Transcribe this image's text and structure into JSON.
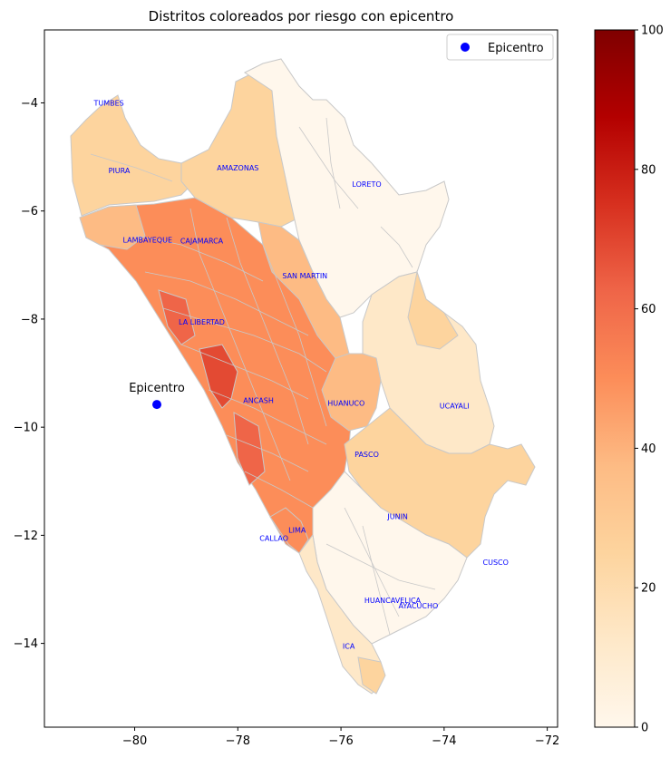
{
  "chart_data": {
    "type": "choropleth",
    "title": "Distritos coloreados por riesgo con epicentro",
    "xlim": [
      -81.75,
      -71.8
    ],
    "ylim": [
      -15.55,
      -2.65
    ],
    "xticks": [
      -80,
      -78,
      -76,
      -74,
      -72
    ],
    "yticks": [
      -4,
      -6,
      -8,
      -10,
      -12,
      -14
    ],
    "colormap": "OrRd",
    "colorbar": {
      "range": [
        0,
        100
      ],
      "ticks": [
        0,
        20,
        40,
        60,
        80,
        100
      ]
    },
    "colors": [
      "#fff7ec",
      "#fee8c8",
      "#fdd49e",
      "#fdbb84",
      "#fc8d59",
      "#ef6548",
      "#d7301f",
      "#b30000",
      "#7f0000"
    ],
    "border_color": "#c8c8c8",
    "epicenter": {
      "lon": -79.57,
      "lat": -9.58,
      "label": "Epicentro",
      "color": "#0000ff"
    },
    "legend": {
      "position": "upper right",
      "entries": [
        "Epicentro"
      ]
    },
    "departments": [
      {
        "name": "TUMBES",
        "lon": -80.5,
        "lat": -4.05,
        "risk": 15
      },
      {
        "name": "PIURA",
        "lon": -80.3,
        "lat": -5.3,
        "risk": 25
      },
      {
        "name": "AMAZONAS",
        "lon": -78.0,
        "lat": -5.25,
        "risk": 22
      },
      {
        "name": "LORETO",
        "lon": -75.5,
        "lat": -5.55,
        "risk": 6
      },
      {
        "name": "LAMBAYEQUE",
        "lon": -79.75,
        "lat": -6.58,
        "risk": 50
      },
      {
        "name": "CAJAMARCA",
        "lon": -78.7,
        "lat": -6.6,
        "risk": 52
      },
      {
        "name": "SAN MARTIN",
        "lon": -76.7,
        "lat": -7.25,
        "risk": 45
      },
      {
        "name": "LA LIBERTAD",
        "lon": -78.7,
        "lat": -8.1,
        "risk": 62
      },
      {
        "name": "ANCASH",
        "lon": -77.6,
        "lat": -9.55,
        "risk": 58
      },
      {
        "name": "HUANUCO",
        "lon": -75.9,
        "lat": -9.6,
        "risk": 42
      },
      {
        "name": "UCAYALI",
        "lon": -73.8,
        "lat": -9.65,
        "risk": 18
      },
      {
        "name": "PASCO",
        "lon": -75.5,
        "lat": -10.55,
        "risk": 20
      },
      {
        "name": "JUNIN",
        "lon": -74.9,
        "lat": -11.7,
        "risk": 8
      },
      {
        "name": "LIMA",
        "lon": -76.85,
        "lat": -11.95,
        "risk": 48
      },
      {
        "name": "CALLAO",
        "lon": -77.3,
        "lat": -12.1,
        "risk": 55
      },
      {
        "name": "CUSCO",
        "lon": -73.0,
        "lat": -12.55,
        "risk": 20
      },
      {
        "name": "HUANCAVELICA",
        "lon": -75.0,
        "lat": -13.25,
        "risk": 6
      },
      {
        "name": "AYACUCHO",
        "lon": -74.5,
        "lat": -13.35,
        "risk": 8
      },
      {
        "name": "ICA",
        "lon": -75.85,
        "lat": -14.1,
        "risk": 12
      }
    ]
  }
}
